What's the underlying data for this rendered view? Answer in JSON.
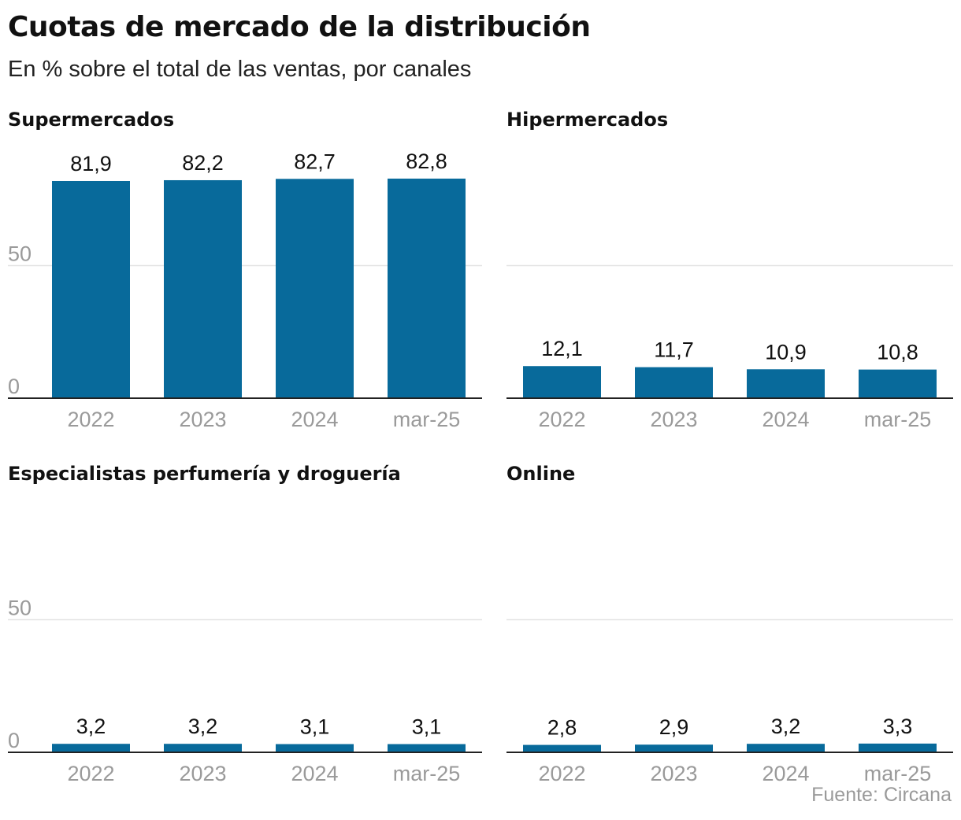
{
  "title": "Cuotas de mercado de la distribución",
  "subtitle": "En % sobre el total de las ventas, por canales",
  "source": "Fuente: Circana",
  "colors": {
    "bar": "#086a9b",
    "grid": "#e3e3e3",
    "axis": "#222222",
    "tick_label": "#9a9a9a"
  },
  "chart_data": [
    {
      "type": "bar",
      "title": "Supermercados",
      "categories": [
        "2022",
        "2023",
        "2024",
        "mar-25"
      ],
      "values": [
        81.9,
        82.2,
        82.7,
        82.8
      ],
      "value_labels": [
        "81,9",
        "82,2",
        "82,7",
        "82,8"
      ],
      "ylim": [
        0,
        100
      ],
      "yticks": [
        0,
        50
      ],
      "ytick_labels": [
        "0",
        "50"
      ],
      "grid": true
    },
    {
      "type": "bar",
      "title": "Hipermercados",
      "categories": [
        "2022",
        "2023",
        "2024",
        "mar-25"
      ],
      "values": [
        12.1,
        11.7,
        10.9,
        10.8
      ],
      "value_labels": [
        "12,1",
        "11,7",
        "10,9",
        "10,8"
      ],
      "ylim": [
        0,
        100
      ],
      "yticks": [
        0,
        50
      ],
      "ytick_labels": [
        "",
        ""
      ],
      "grid": true
    },
    {
      "type": "bar",
      "title": "Especialistas perfumería y droguería",
      "categories": [
        "2022",
        "2023",
        "2024",
        "mar-25"
      ],
      "values": [
        3.2,
        3.2,
        3.1,
        3.1
      ],
      "value_labels": [
        "3,2",
        "3,2",
        "3,1",
        "3,1"
      ],
      "ylim": [
        0,
        100
      ],
      "yticks": [
        0,
        50
      ],
      "ytick_labels": [
        "0",
        "50"
      ],
      "grid": true
    },
    {
      "type": "bar",
      "title": "Online",
      "categories": [
        "2022",
        "2023",
        "2024",
        "mar-25"
      ],
      "values": [
        2.8,
        2.9,
        3.2,
        3.3
      ],
      "value_labels": [
        "2,8",
        "2,9",
        "3,2",
        "3,3"
      ],
      "ylim": [
        0,
        100
      ],
      "yticks": [
        0,
        50
      ],
      "ytick_labels": [
        "",
        ""
      ],
      "grid": true
    }
  ]
}
